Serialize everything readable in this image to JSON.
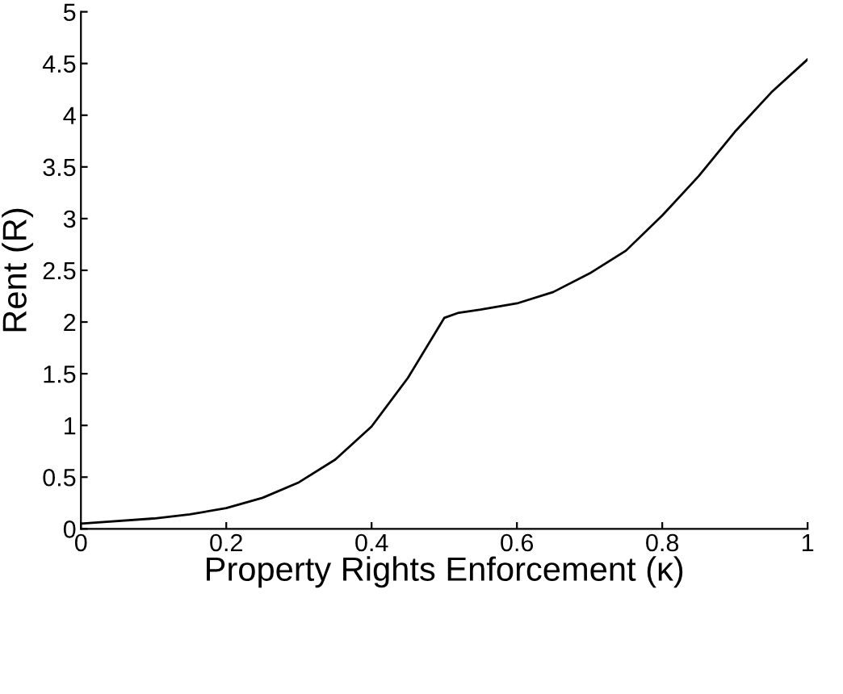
{
  "chart_data": {
    "type": "line",
    "xlabel": "Property Rights Enforcement (κ)",
    "ylabel": "Rent (R)",
    "x": [
      0,
      0.1,
      0.15,
      0.2,
      0.25,
      0.3,
      0.35,
      0.4,
      0.45,
      0.5,
      0.52,
      0.55,
      0.6,
      0.65,
      0.7,
      0.75,
      0.8,
      0.85,
      0.9,
      0.95,
      1
    ],
    "series": [
      {
        "color": "#000000",
        "values": [
          0.05,
          0.1,
          0.14,
          0.2,
          0.3,
          0.45,
          0.67,
          0.99,
          1.46,
          2.04,
          2.09,
          2.12,
          2.18,
          2.29,
          2.47,
          2.69,
          3.03,
          3.41,
          3.84,
          4.22,
          4.54
        ]
      }
    ],
    "xlim": [
      0,
      1
    ],
    "ylim": [
      0,
      5
    ],
    "xticks": [
      0,
      0.2,
      0.4,
      0.6,
      0.8,
      1
    ],
    "yticks": [
      0,
      0.5,
      1,
      1.5,
      2,
      2.5,
      3,
      3.5,
      4,
      4.5,
      5
    ],
    "grid": false,
    "legend": false,
    "marker": "none",
    "line_style": "solid"
  }
}
